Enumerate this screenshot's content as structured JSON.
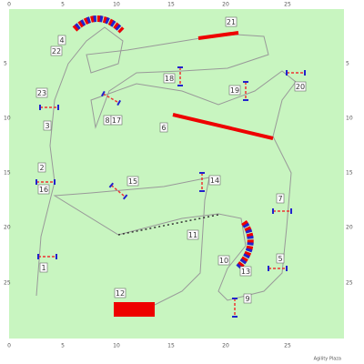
{
  "axis": {
    "top": [
      "0",
      "5",
      "10",
      "15",
      "20",
      "25"
    ],
    "left": [
      "5",
      "10",
      "15",
      "20",
      "25"
    ],
    "bottom": [
      "0",
      "5",
      "10",
      "15",
      "20",
      "25"
    ],
    "right": [
      "5",
      "10",
      "15",
      "20",
      "25"
    ]
  },
  "obstacles": [
    "1",
    "2",
    "3",
    "4",
    "5",
    "6",
    "7",
    "8",
    "9",
    "10",
    "11",
    "12",
    "13",
    "14",
    "15",
    "16",
    "17",
    "18",
    "19",
    "20",
    "21",
    "22",
    "23"
  ],
  "footer": "Agility Plaza"
}
